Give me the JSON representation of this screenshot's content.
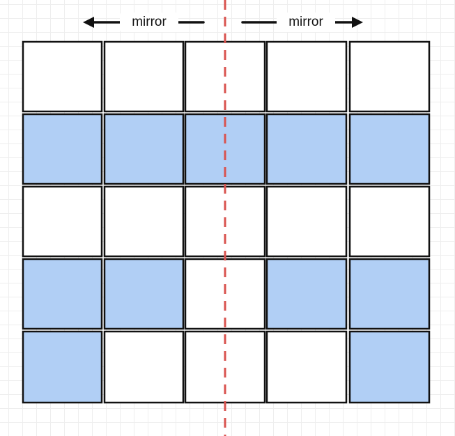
{
  "labels": {
    "left_arrow": "mirror",
    "right_arrow": "mirror"
  },
  "colors": {
    "filled": "#b1cff5",
    "empty": "#ffffff",
    "stroke": "#111111",
    "axis": "#d9534f",
    "arrow": "#111111"
  },
  "grid": {
    "rows": 5,
    "cols": 5,
    "cells": [
      [
        0,
        0,
        0,
        0,
        0
      ],
      [
        1,
        1,
        1,
        1,
        1
      ],
      [
        0,
        0,
        0,
        0,
        0
      ],
      [
        1,
        1,
        0,
        1,
        1
      ],
      [
        1,
        0,
        0,
        0,
        1
      ]
    ]
  }
}
